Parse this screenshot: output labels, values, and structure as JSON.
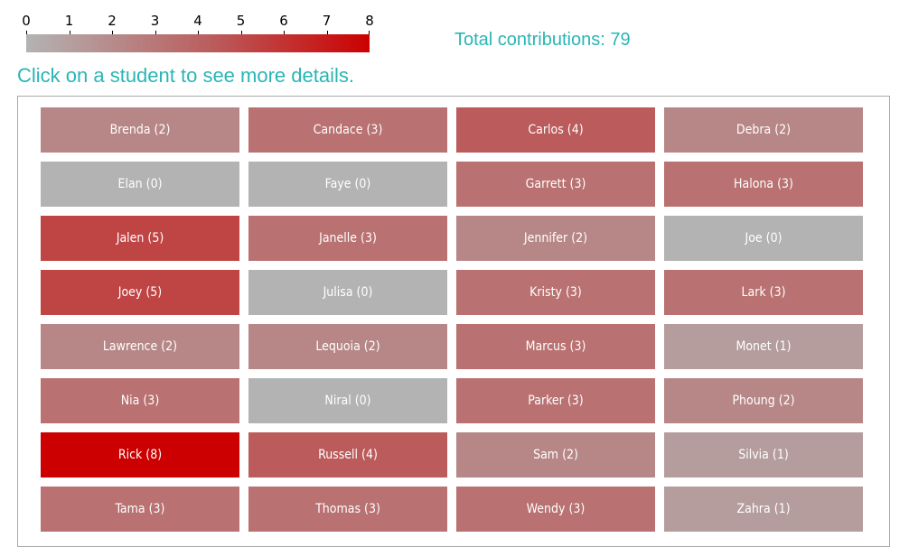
{
  "legend": {
    "ticks": [
      "0",
      "1",
      "2",
      "3",
      "4",
      "5",
      "6",
      "7",
      "8"
    ],
    "min": 0,
    "max": 8,
    "colors": {
      "min": "#b3b3b3",
      "mid": "#bb5b5b",
      "max": "#cc0000"
    }
  },
  "total_label": "Total contributions: 79",
  "instruction": "Click on a student to see more details.",
  "students": [
    {
      "label": "Brenda (2)",
      "count": 2
    },
    {
      "label": "Candace (3)",
      "count": 3
    },
    {
      "label": "Carlos (4)",
      "count": 4
    },
    {
      "label": "Debra (2)",
      "count": 2
    },
    {
      "label": "Elan (0)",
      "count": 0
    },
    {
      "label": "Faye (0)",
      "count": 0
    },
    {
      "label": "Garrett (3)",
      "count": 3
    },
    {
      "label": "Halona (3)",
      "count": 3
    },
    {
      "label": "Jalen (5)",
      "count": 5
    },
    {
      "label": "Janelle (3)",
      "count": 3
    },
    {
      "label": "Jennifer (2)",
      "count": 2
    },
    {
      "label": "Joe (0)",
      "count": 0
    },
    {
      "label": "Joey (5)",
      "count": 5
    },
    {
      "label": "Julisa (0)",
      "count": 0
    },
    {
      "label": "Kristy (3)",
      "count": 3
    },
    {
      "label": "Lark (3)",
      "count": 3
    },
    {
      "label": "Lawrence (2)",
      "count": 2
    },
    {
      "label": "Lequoia (2)",
      "count": 2
    },
    {
      "label": "Marcus (3)",
      "count": 3
    },
    {
      "label": "Monet (1)",
      "count": 1
    },
    {
      "label": "Nia (3)",
      "count": 3
    },
    {
      "label": "Niral (0)",
      "count": 0
    },
    {
      "label": "Parker (3)",
      "count": 3
    },
    {
      "label": "Phoung (2)",
      "count": 2
    },
    {
      "label": "Rick (8)",
      "count": 8
    },
    {
      "label": "Russell (4)",
      "count": 4
    },
    {
      "label": "Sam (2)",
      "count": 2
    },
    {
      "label": "Silvia (1)",
      "count": 1
    },
    {
      "label": "Tama (3)",
      "count": 3
    },
    {
      "label": "Thomas (3)",
      "count": 3
    },
    {
      "label": "Wendy (3)",
      "count": 3
    },
    {
      "label": "Zahra (1)",
      "count": 1
    }
  ]
}
